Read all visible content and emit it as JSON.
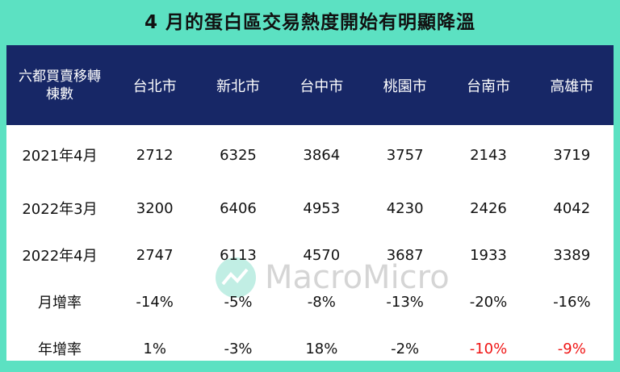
{
  "title": "4 月的蛋白區交易熱度開始有明顯降溫",
  "watermark": "MacroMicro",
  "table": {
    "header": [
      "六都買賣移轉棟數",
      "台北市",
      "新北市",
      "台中市",
      "桃園市",
      "台南市",
      "高雄市"
    ],
    "rows": [
      [
        "2021年4月",
        "2712",
        "6325",
        "3864",
        "3757",
        "2143",
        "3719"
      ],
      [
        "2022年3月",
        "3200",
        "6406",
        "4953",
        "4230",
        "2426",
        "4042"
      ],
      [
        "2022年4月",
        "2747",
        "6113",
        "4570",
        "3687",
        "1933",
        "3389"
      ],
      [
        "月增率",
        "-14%",
        "-5%",
        "-8%",
        "-13%",
        "-20%",
        "-16%"
      ],
      [
        "年增率",
        "1%",
        "-3%",
        "18%",
        "-2%",
        "-10%",
        "-9%"
      ]
    ]
  }
}
